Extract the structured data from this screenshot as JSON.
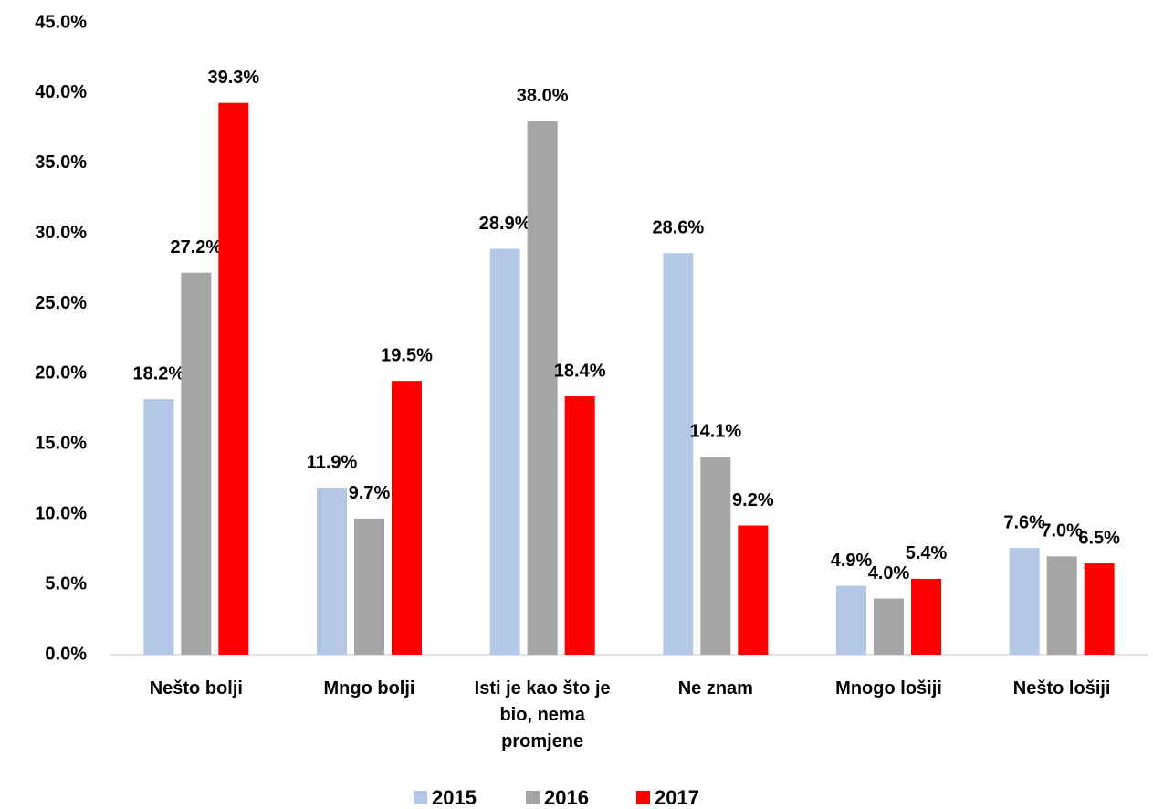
{
  "chart_data": {
    "type": "bar",
    "categories": [
      "Nešto bolji",
      "Mngo bolji",
      "Isti je kao što je bio, nema promjene",
      "Ne znam",
      "Mnogo lošiji",
      "Nešto lošiji"
    ],
    "series": [
      {
        "name": "2015",
        "color": "#b4c7e7",
        "values": [
          18.2,
          11.9,
          28.9,
          28.6,
          4.9,
          7.6
        ],
        "value_labels": [
          "18.2%",
          "11.9%",
          "28.9%",
          "28.6%",
          "4.9%",
          "7.6%"
        ]
      },
      {
        "name": "2016",
        "color": "#a5a5a5",
        "values": [
          27.2,
          9.7,
          38.0,
          14.1,
          4.0,
          7.0
        ],
        "value_labels": [
          "27.2%",
          "9.7%",
          "38.0%",
          "14.1%",
          "4.0%",
          "7.0%"
        ]
      },
      {
        "name": "2017",
        "color": "#ff0000",
        "values": [
          39.3,
          19.5,
          18.4,
          9.2,
          5.4,
          6.5
        ],
        "value_labels": [
          "39.3%",
          "19.5%",
          "18.4%",
          "9.2%",
          "5.4%",
          "6.5%"
        ]
      }
    ],
    "ylim": [
      0,
      45
    ],
    "yticks": [
      {
        "value": 0,
        "label": "0.0%"
      },
      {
        "value": 5,
        "label": "5.0%"
      },
      {
        "value": 10,
        "label": "10.0%"
      },
      {
        "value": 15,
        "label": "15.0%"
      },
      {
        "value": 20,
        "label": "20.0%"
      },
      {
        "value": 25,
        "label": "25.0%"
      },
      {
        "value": 30,
        "label": "30.0%"
      },
      {
        "value": 35,
        "label": "35.0%"
      },
      {
        "value": 40,
        "label": "40.0%"
      },
      {
        "value": 45,
        "label": "45.0%"
      }
    ],
    "grid": false,
    "legend": "bottom"
  }
}
